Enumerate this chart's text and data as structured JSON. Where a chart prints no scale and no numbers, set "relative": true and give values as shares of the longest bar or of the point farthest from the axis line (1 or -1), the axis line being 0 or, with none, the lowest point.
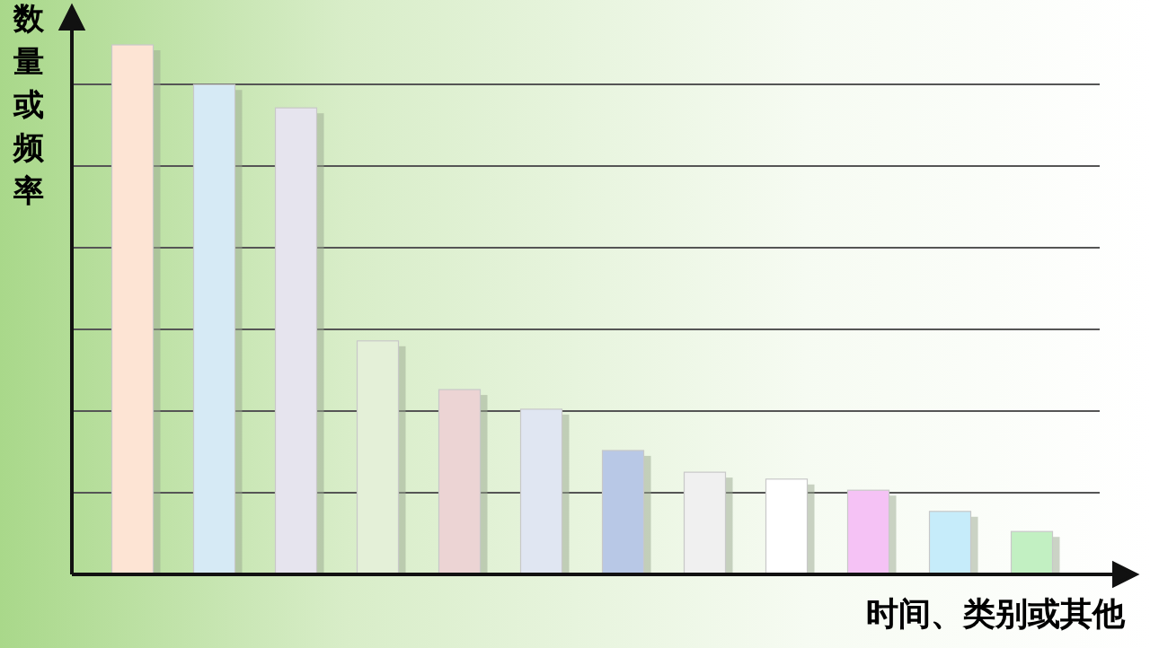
{
  "chart_data": {
    "type": "bar",
    "relative": true,
    "xlabel": "时间、类别或其他",
    "ylabel": "数量或频率",
    "grid": "y",
    "categories": [
      null,
      null,
      null,
      null,
      null,
      null,
      null,
      null,
      null,
      null,
      null,
      null
    ],
    "values": [
      1,
      0.925,
      0.881,
      0.441,
      0.349,
      0.312,
      0.234,
      0.193,
      0.18,
      0.159,
      0.119,
      0.081
    ],
    "colors": [
      "#fde4d4",
      "#d6eaf5",
      "#e6e4ee",
      "#e4f0d8",
      "#ecd4d4",
      "#e0e6f2",
      "#b8c8e6",
      "#f0f0f0",
      "#ffffff",
      "#f5c2f5",
      "#c6ecfa",
      "#c2f0c2"
    ]
  }
}
